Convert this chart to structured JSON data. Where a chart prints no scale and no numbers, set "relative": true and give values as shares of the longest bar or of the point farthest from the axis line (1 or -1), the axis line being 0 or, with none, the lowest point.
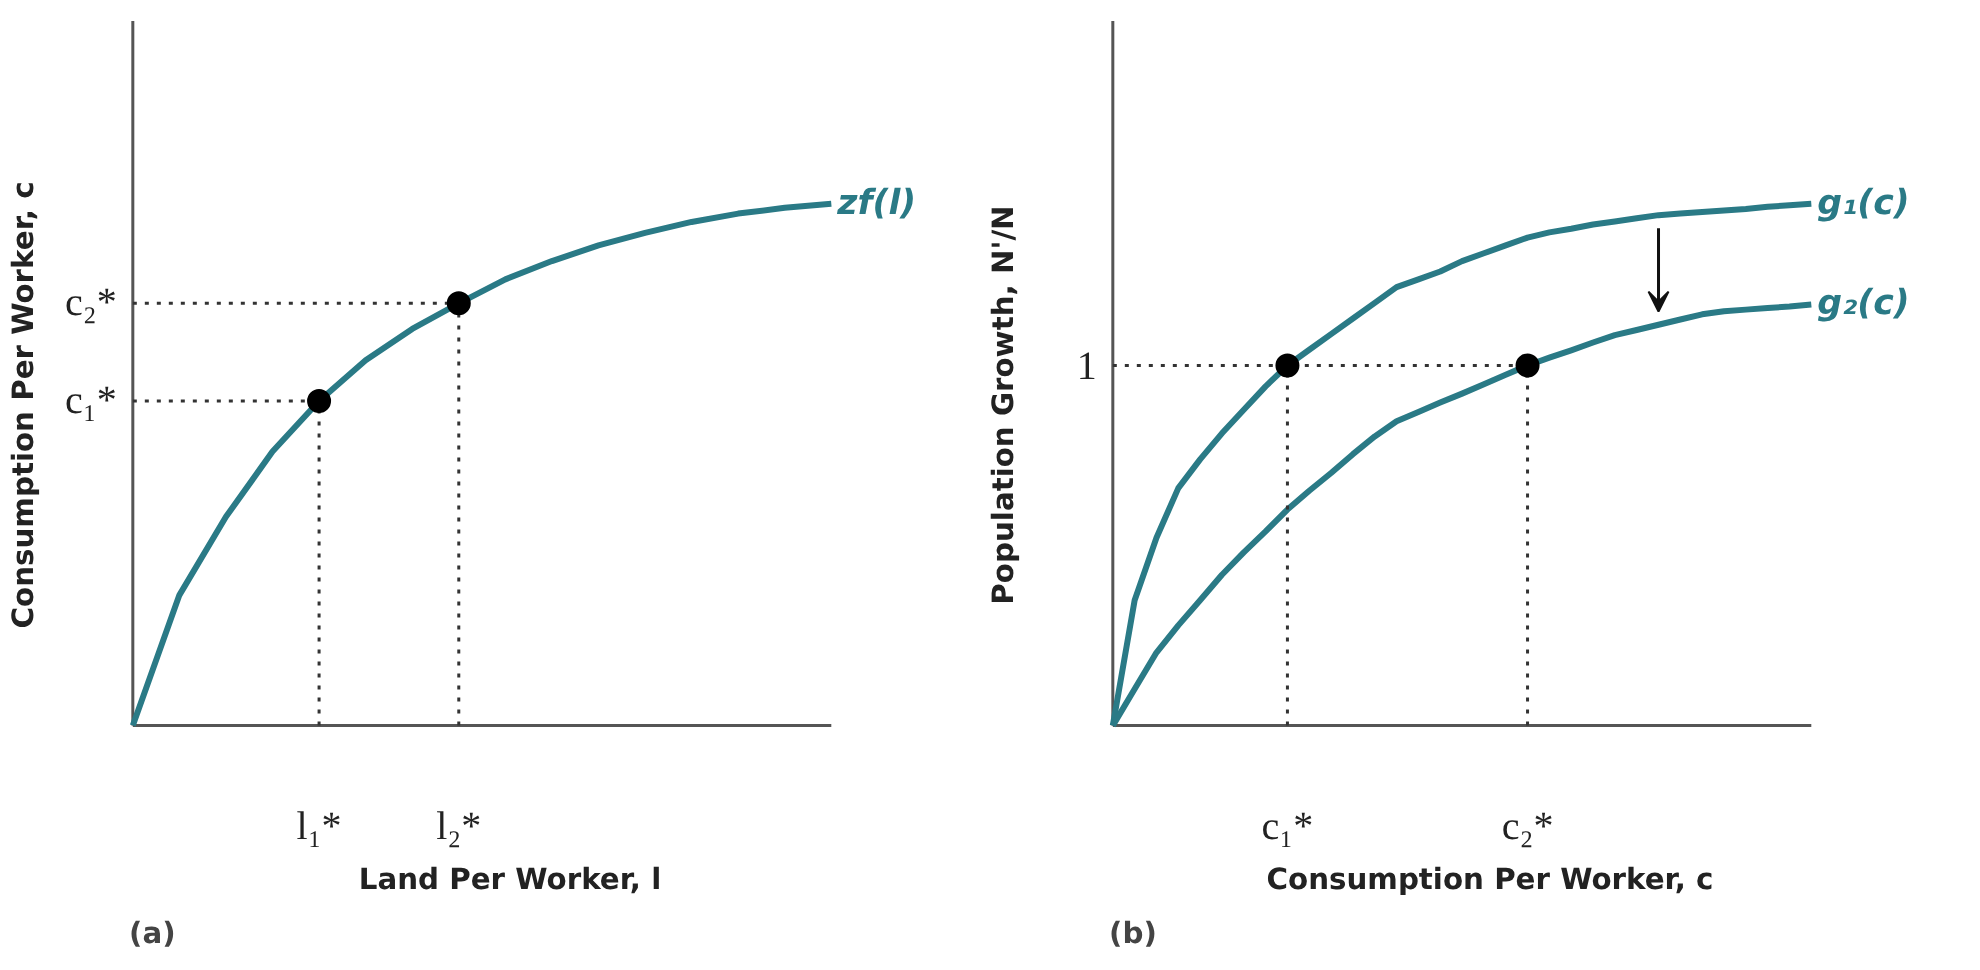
{
  "chart_data": [
    {
      "type": "line",
      "relative": true,
      "xlabel": "Land Per Worker, l",
      "ylabel": "Consumption Per Worker, c",
      "annotations": [
        "(a)"
      ],
      "categories": [
        null,
        null,
        null,
        null,
        "l₁*",
        null,
        null,
        "l₂*",
        null,
        null,
        null,
        null,
        null,
        null,
        null,
        null
      ],
      "ref_lines": [
        {
          "axis": "y",
          "value": 0.622,
          "label": "c₁*",
          "line_style": "dotted"
        },
        {
          "axis": "y",
          "value": 0.809,
          "label": "c₂*",
          "line_style": "dotted"
        }
      ],
      "series": [
        {
          "name": "zf(l)",
          "color": "#2a7a86",
          "values": [
            0,
            0.25,
            0.4,
            0.525,
            0.622,
            0.7,
            0.76,
            0.809,
            0.855,
            0.89,
            0.92,
            0.944,
            0.965,
            0.981,
            0.992,
            1.0
          ]
        },
        {
          "type": "scatter",
          "marker": "circle",
          "color": "#000000",
          "values": [
            null,
            null,
            null,
            null,
            0.622,
            null,
            null,
            0.809,
            null,
            null,
            null,
            null,
            null,
            null,
            null,
            null
          ]
        }
      ]
    },
    {
      "type": "line",
      "relative": true,
      "xlabel": "Consumption Per Worker, c",
      "ylabel": "Population Growth, N'/N",
      "annotations": [
        "(b)"
      ],
      "categories": [
        null,
        null,
        null,
        null,
        null,
        null,
        null,
        null,
        "c₁*",
        null,
        null,
        null,
        null,
        null,
        null,
        null,
        null,
        null,
        null,
        "c₂*",
        null,
        null,
        null,
        null,
        null,
        null,
        null,
        null,
        null,
        null,
        null,
        null,
        null
      ],
      "ref_lines": [
        {
          "axis": "y",
          "value": 0.69,
          "label": "1",
          "line_style": "dotted"
        }
      ],
      "series": [
        {
          "name": "g₁(c)",
          "color": "#2a7a86",
          "values": [
            0,
            0.24,
            0.36,
            0.455,
            0.51,
            0.56,
            0.605,
            0.65,
            0.69,
            0.72,
            0.75,
            0.78,
            0.81,
            0.84,
            0.855,
            0.87,
            0.89,
            0.905,
            0.92,
            0.935,
            0.945,
            0.952,
            0.96,
            0.966,
            0.972,
            0.978,
            0.981,
            0.984,
            0.987,
            0.99,
            0.994,
            0.997,
            1.0
          ]
        },
        {
          "name": "g₂(c)",
          "color": "#2a7a86",
          "values": [
            0,
            0.07,
            0.14,
            0.192,
            0.24,
            0.289,
            0.332,
            0.372,
            0.414,
            0.45,
            0.484,
            0.52,
            0.554,
            0.583,
            0.601,
            0.619,
            0.636,
            0.654,
            0.672,
            0.69,
            0.705,
            0.719,
            0.734,
            0.748,
            0.758,
            0.768,
            0.778,
            0.788,
            0.794,
            0.797,
            0.8,
            0.803,
            0.807
          ]
        },
        {
          "type": "scatter",
          "marker": "circle",
          "color": "#000000",
          "values": [
            null,
            null,
            null,
            null,
            null,
            null,
            null,
            null,
            0.69,
            null,
            null,
            null,
            null,
            null,
            null,
            null,
            null,
            null,
            null,
            0.69,
            null,
            null,
            null,
            null,
            null,
            null,
            null,
            null,
            null,
            null,
            null,
            null,
            null
          ]
        }
      ]
    }
  ]
}
